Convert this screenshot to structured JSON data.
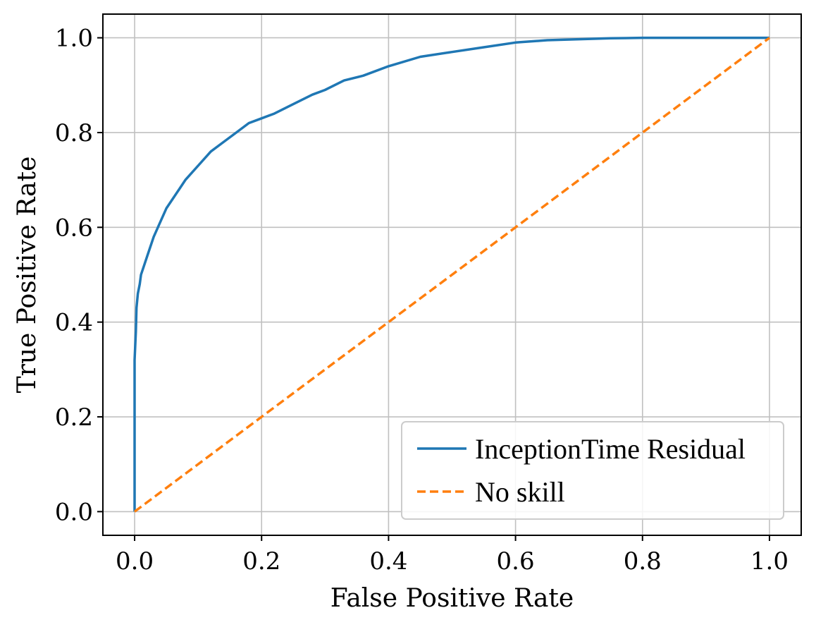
{
  "chart_data": {
    "type": "line",
    "title": "",
    "xlabel": "False Positive Rate",
    "ylabel": "True Positive Rate",
    "xlim": [
      -0.05,
      1.05
    ],
    "ylim": [
      -0.05,
      1.05
    ],
    "x_ticks": [
      0.0,
      0.2,
      0.4,
      0.6,
      0.8,
      1.0
    ],
    "y_ticks": [
      0.0,
      0.2,
      0.4,
      0.6,
      0.8,
      1.0
    ],
    "x_tick_labels": [
      "0.0",
      "0.2",
      "0.4",
      "0.6",
      "0.8",
      "1.0"
    ],
    "y_tick_labels": [
      "0.0",
      "0.2",
      "0.4",
      "0.6",
      "0.8",
      "1.0"
    ],
    "grid": true,
    "legend_position": "bottom-right",
    "series": [
      {
        "name": "InceptionTime Residual",
        "color": "#1f77b4",
        "style": "solid",
        "x": [
          0.0,
          0.0,
          0.002,
          0.003,
          0.005,
          0.008,
          0.01,
          0.015,
          0.02,
          0.03,
          0.04,
          0.05,
          0.06,
          0.07,
          0.08,
          0.1,
          0.12,
          0.14,
          0.16,
          0.18,
          0.2,
          0.22,
          0.25,
          0.28,
          0.3,
          0.33,
          0.36,
          0.4,
          0.45,
          0.5,
          0.55,
          0.6,
          0.65,
          0.7,
          0.75,
          0.8,
          0.9,
          1.0
        ],
        "y": [
          0.0,
          0.32,
          0.38,
          0.43,
          0.46,
          0.48,
          0.5,
          0.52,
          0.54,
          0.58,
          0.61,
          0.64,
          0.66,
          0.68,
          0.7,
          0.73,
          0.76,
          0.78,
          0.8,
          0.82,
          0.83,
          0.84,
          0.86,
          0.88,
          0.89,
          0.91,
          0.92,
          0.94,
          0.96,
          0.97,
          0.98,
          0.99,
          0.995,
          0.997,
          0.999,
          1.0,
          1.0,
          1.0
        ]
      },
      {
        "name": "No skill",
        "color": "#ff7f0e",
        "style": "dashed",
        "x": [
          0.0,
          1.0
        ],
        "y": [
          0.0,
          1.0
        ]
      }
    ]
  }
}
